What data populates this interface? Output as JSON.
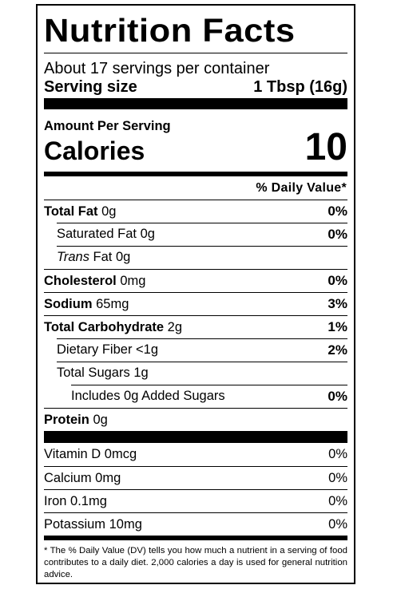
{
  "title": "Nutrition Facts",
  "servings_per_container": "About 17 servings per container",
  "serving_size": {
    "label": "Serving size",
    "value": "1 Tbsp (16g)"
  },
  "amount_per_serving": "Amount Per Serving",
  "calories": {
    "label": "Calories",
    "value": "10"
  },
  "daily_value_header": "% Daily Value*",
  "nutrients": [
    {
      "name": "Total Fat",
      "amount": "0g",
      "dv": "0%"
    },
    {
      "name": "Saturated Fat",
      "amount": "0g",
      "dv": "0%"
    },
    {
      "name": "Trans",
      "name_rest": " Fat",
      "amount": "0g",
      "dv": ""
    },
    {
      "name": "Cholesterol",
      "amount": "0mg",
      "dv": "0%"
    },
    {
      "name": "Sodium",
      "amount": "65mg",
      "dv": "3%"
    },
    {
      "name": "Total Carbohydrate",
      "amount": "2g",
      "dv": "1%"
    },
    {
      "name": "Dietary Fiber",
      "amount": "<1g",
      "dv": "2%"
    },
    {
      "name": "Total Sugars",
      "amount": "1g",
      "dv": ""
    },
    {
      "name": "Includes 0g Added Sugars",
      "amount": "",
      "dv": "0%"
    },
    {
      "name": "Protein",
      "amount": "0g",
      "dv": ""
    }
  ],
  "vitamins": [
    {
      "name": "Vitamin D 0mcg",
      "dv": "0%"
    },
    {
      "name": "Calcium 0mg",
      "dv": "0%"
    },
    {
      "name": "Iron 0.1mg",
      "dv": "0%"
    },
    {
      "name": "Potassium 10mg",
      "dv": "0%"
    }
  ],
  "footnote": "* The % Daily Value (DV) tells you how much a nutrient in a serving of food contributes to a daily diet. 2,000 calories a day is used for general nutrition advice."
}
